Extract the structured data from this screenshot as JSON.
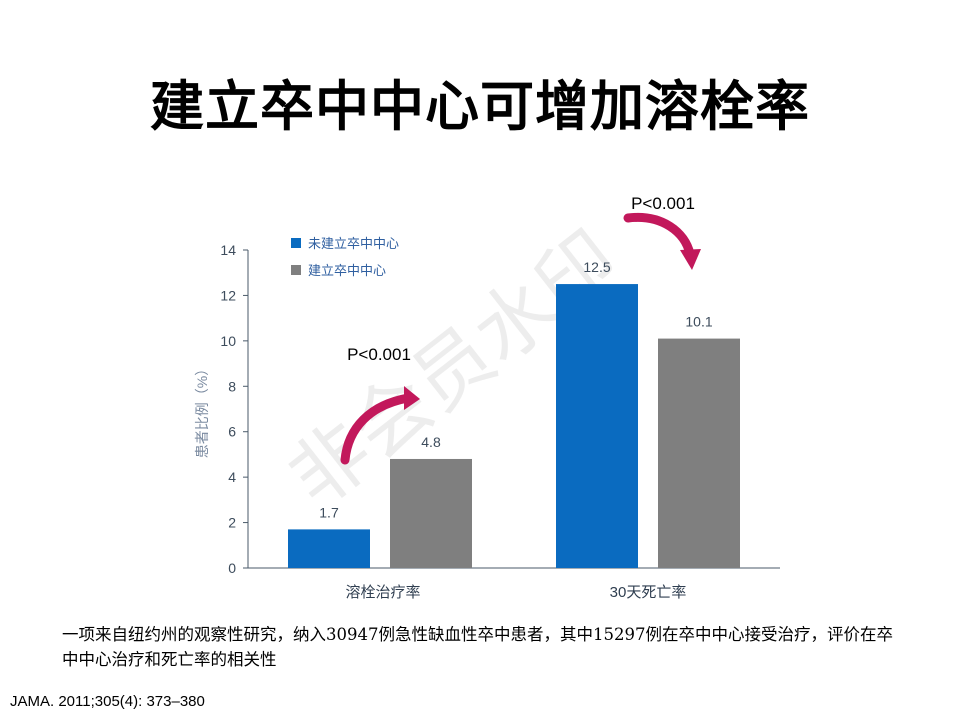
{
  "title": "建立卒中中心可增加溶栓率",
  "watermark": "非会员水印",
  "chart_data": {
    "type": "bar",
    "categories": [
      "溶栓治疗率",
      "30天死亡率"
    ],
    "series": [
      {
        "name": "未建立卒中中心",
        "values": [
          1.7,
          12.5
        ],
        "color": "#0a6bc0"
      },
      {
        "name": "建立卒中中心",
        "values": [
          4.8,
          10.1
        ],
        "color": "#7f7f7f"
      }
    ],
    "data_labels": [
      [
        "1.7",
        "12.5"
      ],
      [
        "4.8",
        "10.1"
      ]
    ],
    "ylabel": "患者比例（%）",
    "ylim": [
      0,
      14
    ],
    "yticks": [
      0,
      2,
      4,
      6,
      8,
      10,
      12,
      14
    ],
    "legend_position": "top-left",
    "annotations": [
      {
        "text": "P<0.001",
        "category": "溶栓治疗率"
      },
      {
        "text": "P<0.001",
        "category": "30天死亡率"
      }
    ],
    "arrow_color": "#c2185b",
    "axis_color": "#4a5a6a"
  },
  "caption": "一项来自纽约州的观察性研究，纳入30947例急性缺血性卒中患者，其中15297例在卒中中心接受治疗，评价在卒中中心治疗和死亡率的相关性",
  "citation": "JAMA. 2011;305(4): 373–380"
}
